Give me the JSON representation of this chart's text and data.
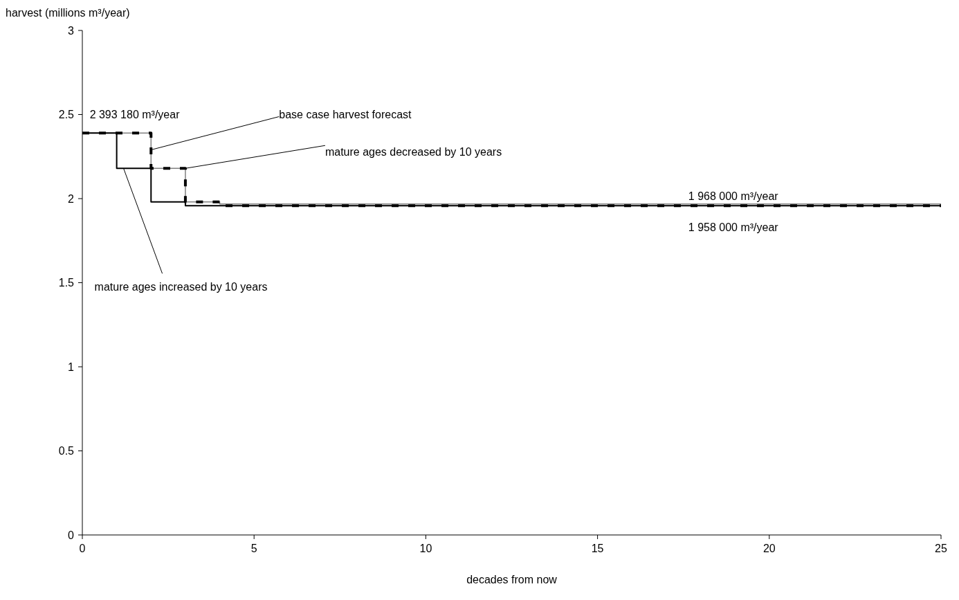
{
  "chart_data": {
    "type": "step",
    "xlabel": "decades from now",
    "ylabel": "harvest (millions m³/year)",
    "xlim": [
      0,
      25
    ],
    "xticks": [
      0,
      5,
      10,
      15,
      20,
      25
    ],
    "ylim": [
      0,
      3
    ],
    "yticks": [
      0,
      0.5,
      1,
      1.5,
      2,
      2.5,
      3
    ],
    "grid": false,
    "legend": false,
    "series": [
      {
        "color": "#808080",
        "line_style": "solid",
        "x": [
          0,
          2,
          3,
          4,
          25
        ],
        "values": [
          2.39,
          2.18,
          1.98,
          1.968,
          1.968
        ]
      },
      {
        "color": "#000000",
        "line_style": "solid",
        "x": [
          0,
          1,
          2,
          3,
          25
        ],
        "values": [
          2.39,
          2.18,
          1.98,
          1.958,
          1.958
        ]
      },
      {
        "color": "#000000",
        "line_style": "dashed",
        "x": [
          0,
          2,
          3,
          4,
          25
        ],
        "values": [
          2.39,
          2.18,
          1.98,
          1.958,
          1.958
        ]
      }
    ],
    "annotations": [
      {
        "text": "2 393 180 m³/year",
        "x": 1,
        "y": 2.39318
      },
      {
        "text": "base case harvest forecast",
        "x": 2,
        "y": 2.29
      },
      {
        "text": "mature ages decreased by 10 years",
        "x": 3,
        "y": 2.18
      },
      {
        "text": "mature ages increased by 10 years",
        "x": 1.2,
        "y": 2.18
      },
      {
        "text": "1 968 000 m³/year",
        "x": 20,
        "y": 1.968
      },
      {
        "text": "1 958 000 m³/year",
        "x": 20,
        "y": 1.958
      }
    ]
  }
}
